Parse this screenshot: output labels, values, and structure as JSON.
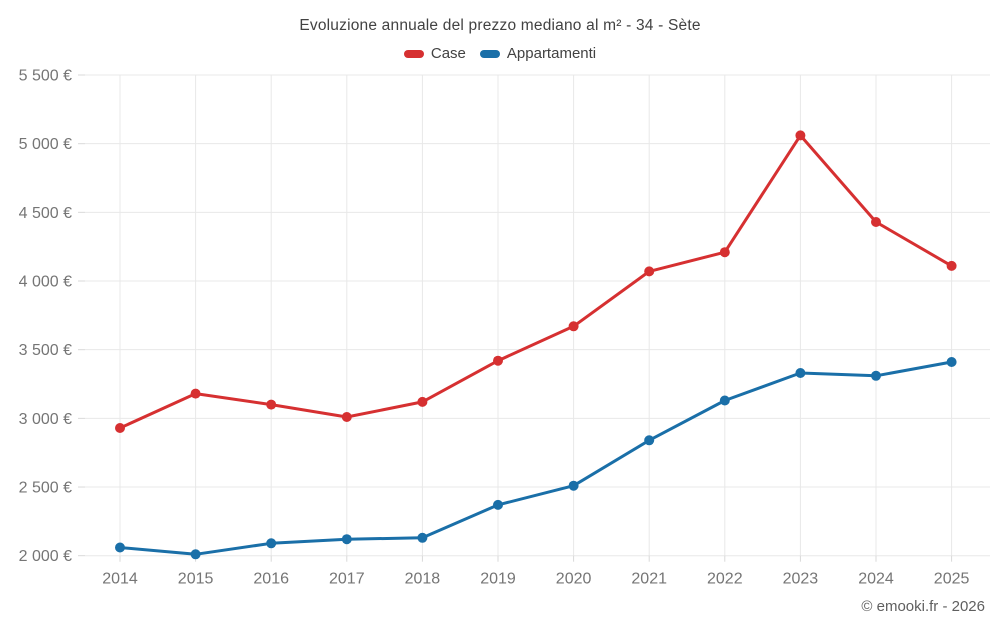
{
  "chart": {
    "title": "Evoluzione annuale del prezzo mediano al m² - 34 - Sète",
    "footer_copyright": "© emooki.fr - 2026"
  },
  "legend": {
    "items": [
      {
        "label": "Case",
        "color": "#d63031"
      },
      {
        "label": "Appartamenti",
        "color": "#1a6fa8"
      }
    ]
  },
  "chart_data": {
    "type": "line",
    "title": "Evoluzione annuale del prezzo mediano al m² - 34 - Sète",
    "xlabel": "",
    "ylabel": "",
    "categories": [
      "2014",
      "2015",
      "2016",
      "2017",
      "2018",
      "2019",
      "2020",
      "2021",
      "2022",
      "2023",
      "2024",
      "2025"
    ],
    "series": [
      {
        "name": "Case",
        "color": "#d63031",
        "values": [
          2930,
          3180,
          3100,
          3010,
          3120,
          3420,
          3670,
          4070,
          4210,
          5060,
          4430,
          4110
        ]
      },
      {
        "name": "Appartamenti",
        "color": "#1a6fa8",
        "values": [
          2060,
          2010,
          2090,
          2120,
          2130,
          2370,
          2510,
          2840,
          3130,
          3330,
          3310,
          3410
        ]
      }
    ],
    "ylim": [
      2000,
      5500
    ],
    "ytick_step": 500,
    "ytick_labels": [
      "2 000 €",
      "2 500 €",
      "3 000 €",
      "3 500 €",
      "4 000 €",
      "4 500 €",
      "5 000 €",
      "5 500 €"
    ],
    "grid": true,
    "gridline_color": "#e8e8e8",
    "axis_text_color": "#757575",
    "legend_position": "top"
  }
}
